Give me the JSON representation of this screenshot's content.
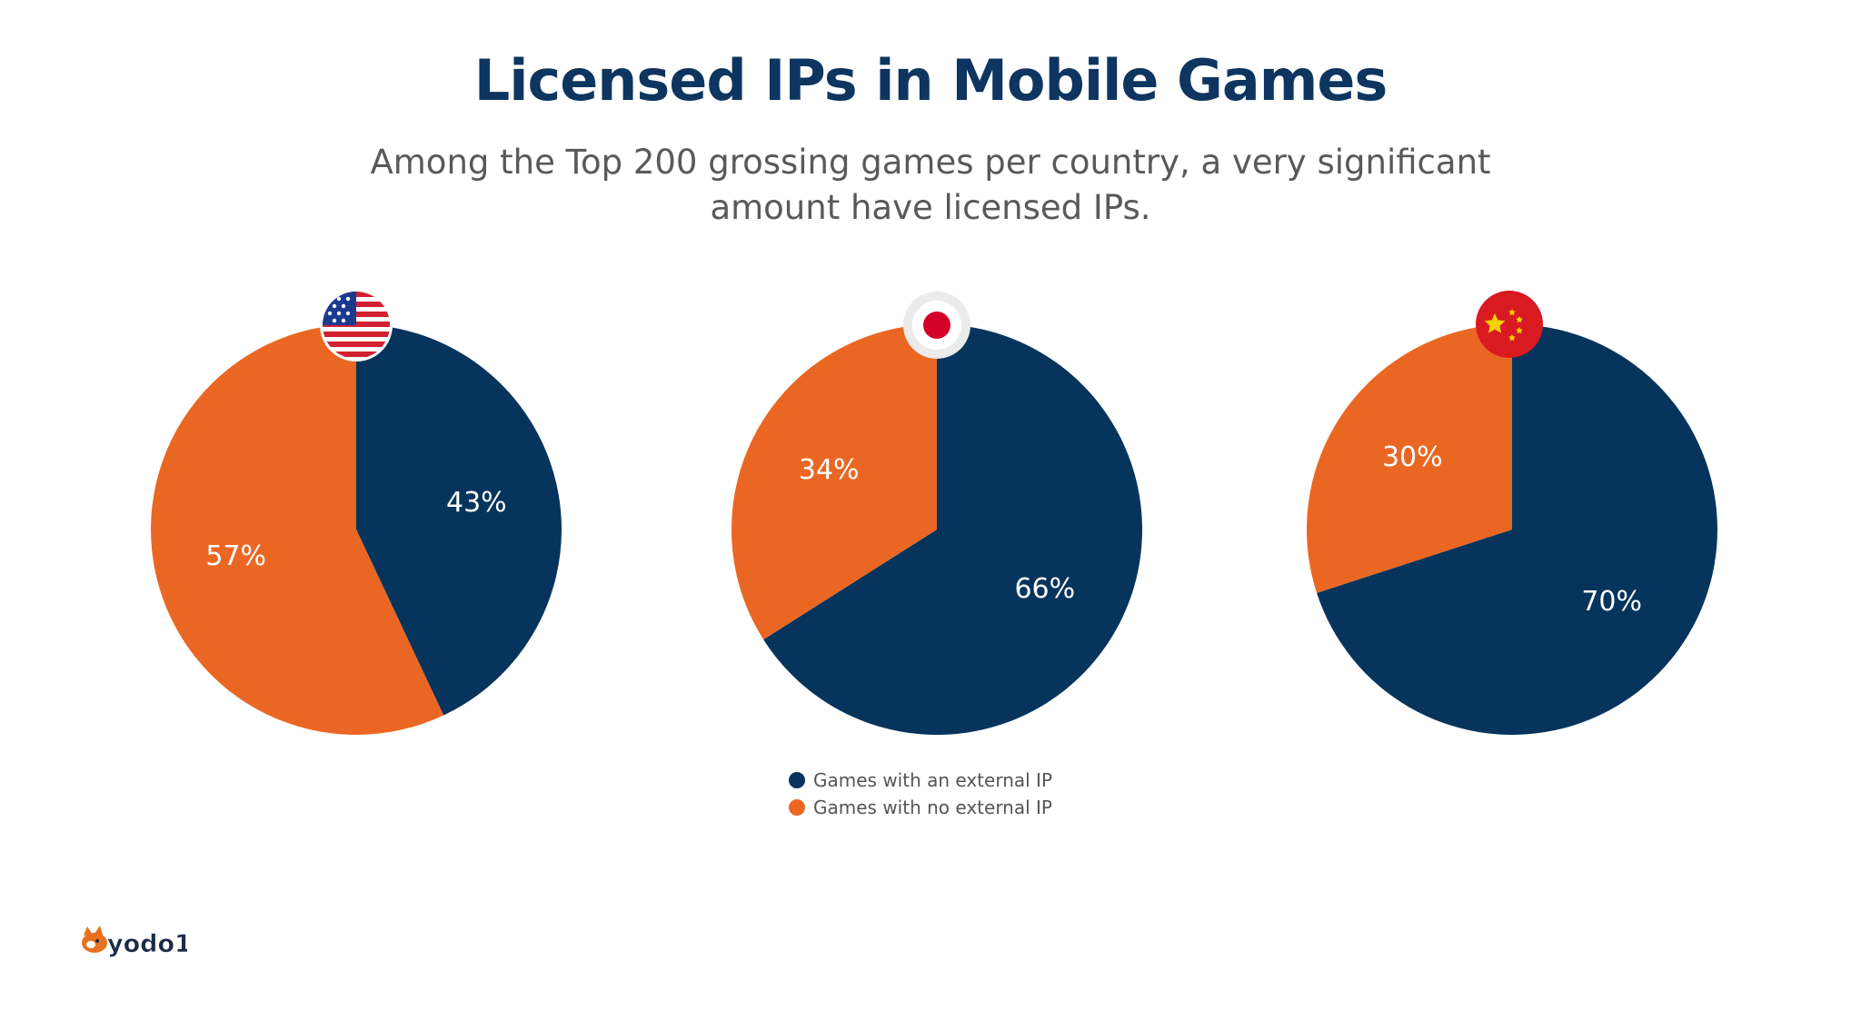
{
  "title": "Licensed IPs in Mobile Games",
  "subtitle_line1": "Among the Top 200 grossing games per country, a very significant",
  "subtitle_line2": "amount have licensed IPs.",
  "colors": {
    "title": "#0d3560",
    "external": "#06345c",
    "no_external": "#ea6723",
    "subtitle": "#595959"
  },
  "legend": [
    {
      "label": "Games with an external IP",
      "color": "#06345c"
    },
    {
      "label": "Games with no external IP",
      "color": "#ea6723"
    }
  ],
  "logo": {
    "text": "yodo1",
    "icon": "yodo1-fox-logo"
  },
  "chart_data": [
    {
      "type": "pie",
      "country_icon": "usa-flag-icon",
      "slices": [
        {
          "name": "Games with an external IP",
          "value": 43,
          "label": "43%"
        },
        {
          "name": "Games with no external IP",
          "value": 57,
          "label": "57%"
        }
      ]
    },
    {
      "type": "pie",
      "country_icon": "japan-flag-icon",
      "slices": [
        {
          "name": "Games with an external IP",
          "value": 66,
          "label": "66%"
        },
        {
          "name": "Games with no external IP",
          "value": 34,
          "label": "34%"
        }
      ]
    },
    {
      "type": "pie",
      "country_icon": "china-flag-icon",
      "slices": [
        {
          "name": "Games with an external IP",
          "value": 70,
          "label": "70%"
        },
        {
          "name": "Games with no external IP",
          "value": 30,
          "label": "30%"
        }
      ]
    }
  ]
}
